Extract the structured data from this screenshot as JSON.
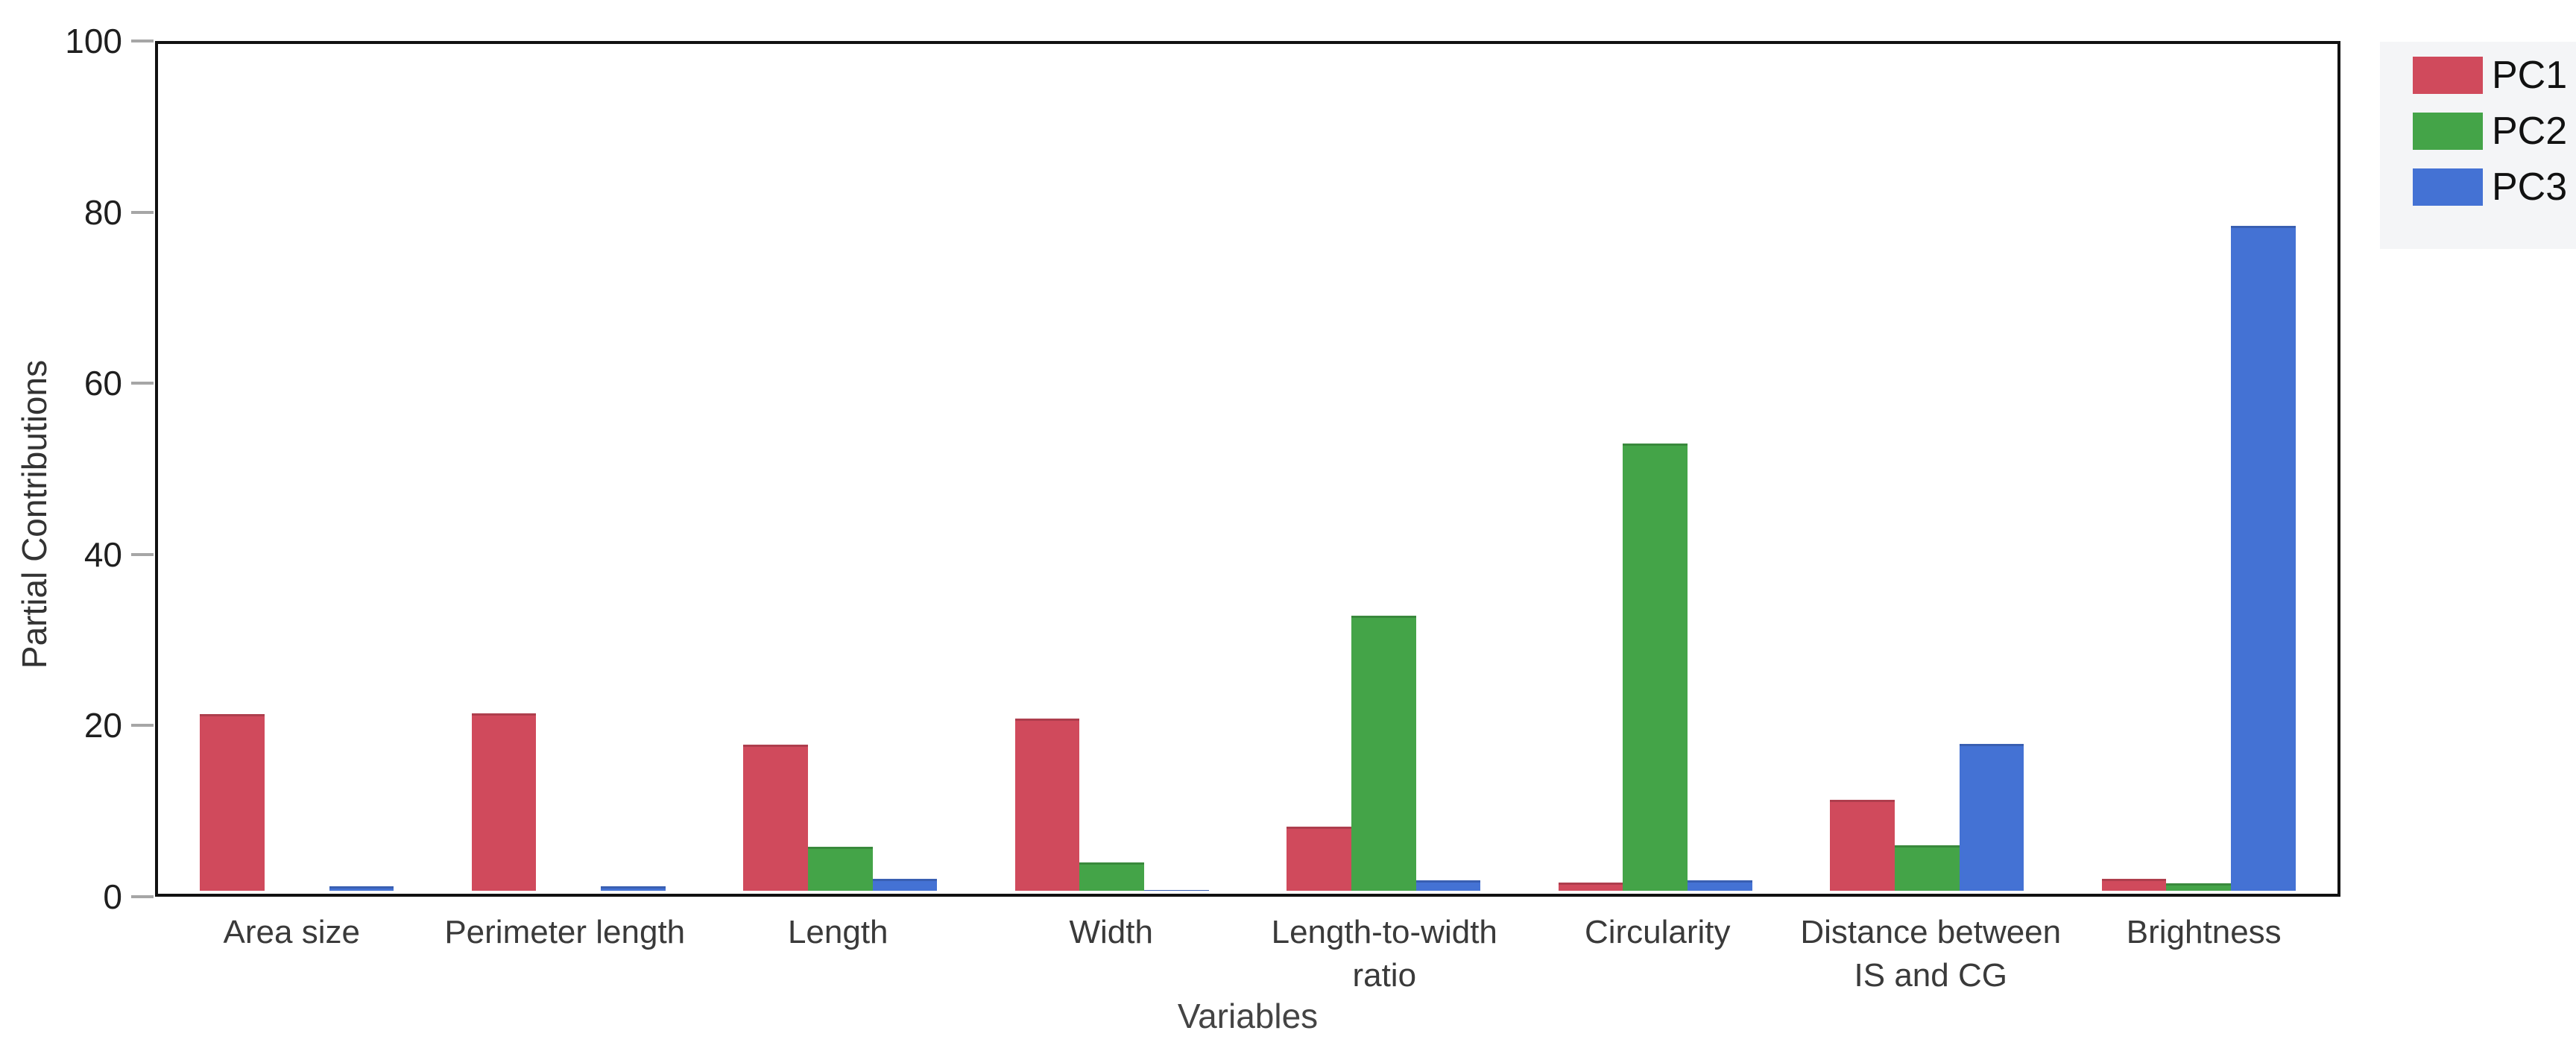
{
  "chart_data": {
    "type": "bar",
    "title": "",
    "categories": [
      "Area size",
      "Perimeter length",
      "Length",
      "Width",
      "Length-to-width\nratio",
      "Circularity",
      "Distance between\nIS and CG",
      "Brightness"
    ],
    "series": [
      {
        "name": "PC1",
        "color": "#d04a5c",
        "values": [
          20.9,
          21.0,
          17.3,
          20.4,
          7.6,
          1.0,
          10.8,
          1.4
        ]
      },
      {
        "name": "PC2",
        "color": "#44a448",
        "values": [
          0,
          0,
          5.2,
          3.4,
          32.6,
          53.0,
          5.4,
          0.9
        ]
      },
      {
        "name": "PC3",
        "color": "#4472d4",
        "values": [
          0.5,
          0.5,
          1.4,
          0.1,
          1.2,
          1.2,
          17.4,
          78.8
        ]
      }
    ],
    "xlabel": "Variables",
    "ylabel": "Partial Contributions",
    "ylim": [
      0,
      100
    ],
    "yticks": [
      0,
      20,
      40,
      60,
      80,
      100
    ],
    "grid": false,
    "legend_position": "top-right",
    "frame": true
  },
  "colors": {
    "axis_frame": "#111111",
    "tick_mark": "#a6a6a6",
    "tick_label": "#1f1f1f",
    "category_label": "#3a3a3a",
    "axis_title": "#444444",
    "legend_background": "#f4f5f7",
    "background": "#ffffff"
  }
}
